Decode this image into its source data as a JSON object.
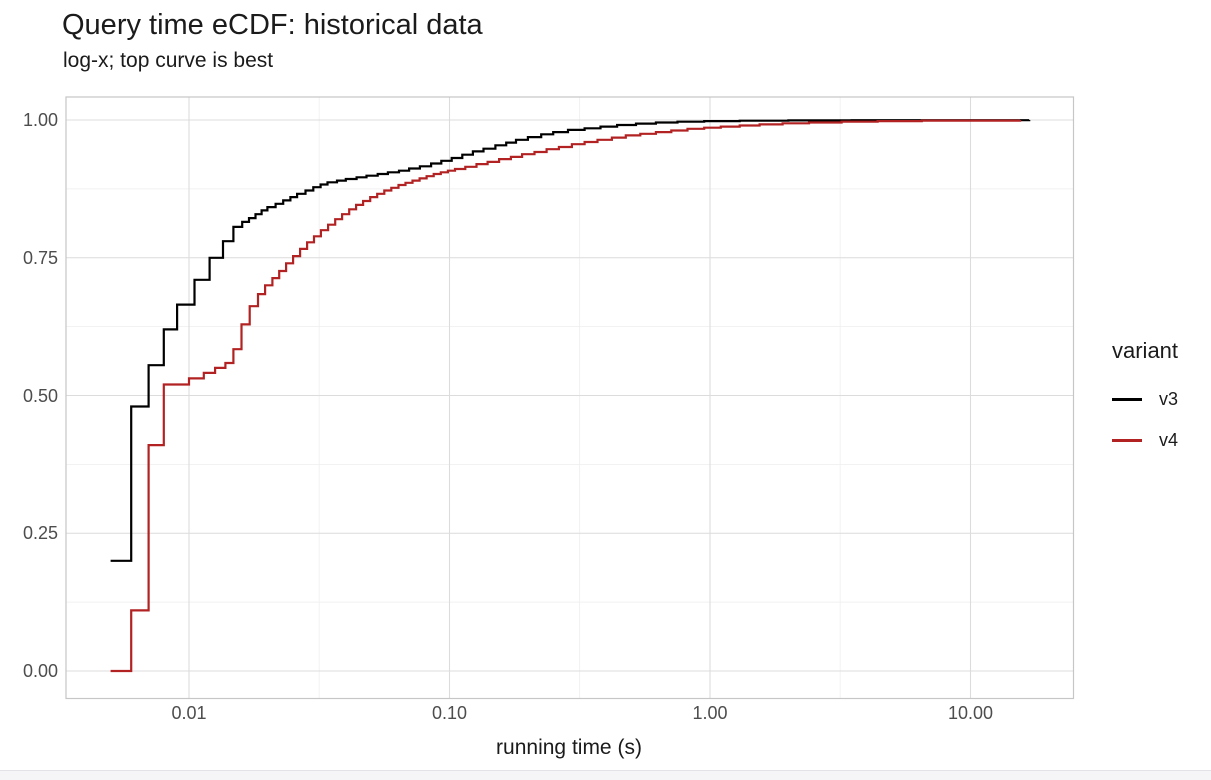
{
  "chart_data": {
    "type": "line",
    "line_style": "step-ecdf",
    "title": "Query time eCDF: historical data",
    "subtitle": "log-x; top curve is best",
    "xlabel": "running time (s)",
    "ylabel": "",
    "x_scale": "log10",
    "xlim": [
      0.0034,
      24.9
    ],
    "ylim": [
      0.0,
      1.0
    ],
    "grid": "major+minor",
    "x_ticks": [
      {
        "value": 0.01,
        "label": "0.01"
      },
      {
        "value": 0.1,
        "label": "0.10"
      },
      {
        "value": 1.0,
        "label": "1.00"
      },
      {
        "value": 10.0,
        "label": "10.00"
      }
    ],
    "y_ticks": [
      {
        "value": 0.0,
        "label": "0.00"
      },
      {
        "value": 0.25,
        "label": "0.25"
      },
      {
        "value": 0.5,
        "label": "0.50"
      },
      {
        "value": 0.75,
        "label": "0.75"
      },
      {
        "value": 1.0,
        "label": "1.00"
      }
    ],
    "x_minor": [
      0.0316,
      0.316,
      3.16
    ],
    "y_minor": [
      0.125,
      0.375,
      0.625,
      0.875
    ],
    "legend": {
      "title": "variant",
      "position": "right"
    },
    "panel": {
      "border_color": "#c6c6c6",
      "grid_major_color": "#dcdcdc",
      "grid_minor_color": "#eeeeee",
      "background": "#ffffff"
    },
    "series": [
      {
        "name": "v3",
        "color": "#000000",
        "points": [
          [
            0.005,
            0.2
          ],
          [
            0.006,
            0.48
          ],
          [
            0.007,
            0.555
          ],
          [
            0.008,
            0.62
          ],
          [
            0.009,
            0.665
          ],
          [
            0.0105,
            0.71
          ],
          [
            0.012,
            0.75
          ],
          [
            0.0135,
            0.78
          ],
          [
            0.0148,
            0.806
          ],
          [
            0.016,
            0.815
          ],
          [
            0.017,
            0.822
          ],
          [
            0.018,
            0.829
          ],
          [
            0.019,
            0.836
          ],
          [
            0.02,
            0.842
          ],
          [
            0.0215,
            0.848
          ],
          [
            0.023,
            0.854
          ],
          [
            0.0245,
            0.86
          ],
          [
            0.026,
            0.866
          ],
          [
            0.028,
            0.872
          ],
          [
            0.03,
            0.878
          ],
          [
            0.032,
            0.883
          ],
          [
            0.034,
            0.887
          ],
          [
            0.037,
            0.89
          ],
          [
            0.04,
            0.893
          ],
          [
            0.044,
            0.896
          ],
          [
            0.048,
            0.899
          ],
          [
            0.053,
            0.902
          ],
          [
            0.058,
            0.905
          ],
          [
            0.064,
            0.908
          ],
          [
            0.07,
            0.912
          ],
          [
            0.077,
            0.916
          ],
          [
            0.085,
            0.921
          ],
          [
            0.093,
            0.926
          ],
          [
            0.102,
            0.931
          ],
          [
            0.112,
            0.937
          ],
          [
            0.123,
            0.943
          ],
          [
            0.135,
            0.948
          ],
          [
            0.15,
            0.954
          ],
          [
            0.165,
            0.959
          ],
          [
            0.18,
            0.964
          ],
          [
            0.2,
            0.969
          ],
          [
            0.225,
            0.974
          ],
          [
            0.25,
            0.978
          ],
          [
            0.285,
            0.982
          ],
          [
            0.33,
            0.985
          ],
          [
            0.38,
            0.988
          ],
          [
            0.44,
            0.991
          ],
          [
            0.52,
            0.9935
          ],
          [
            0.62,
            0.9955
          ],
          [
            0.75,
            0.997
          ],
          [
            0.95,
            0.998
          ],
          [
            1.3,
            0.9987
          ],
          [
            2.0,
            0.9993
          ],
          [
            3.5,
            0.9997
          ],
          [
            16.8,
            1.0
          ]
        ]
      },
      {
        "name": "v4",
        "color": "#B22222",
        "points": [
          [
            0.005,
            0.0
          ],
          [
            0.006,
            0.11
          ],
          [
            0.007,
            0.41
          ],
          [
            0.008,
            0.52
          ],
          [
            0.01,
            0.531
          ],
          [
            0.0114,
            0.541
          ],
          [
            0.0126,
            0.55
          ],
          [
            0.0138,
            0.559
          ],
          [
            0.0148,
            0.584
          ],
          [
            0.0159,
            0.629
          ],
          [
            0.0171,
            0.662
          ],
          [
            0.0184,
            0.684
          ],
          [
            0.0196,
            0.7
          ],
          [
            0.0209,
            0.713
          ],
          [
            0.0222,
            0.726
          ],
          [
            0.0236,
            0.74
          ],
          [
            0.0251,
            0.753
          ],
          [
            0.0267,
            0.766
          ],
          [
            0.0284,
            0.778
          ],
          [
            0.0302,
            0.789
          ],
          [
            0.0321,
            0.8
          ],
          [
            0.0342,
            0.81
          ],
          [
            0.0364,
            0.82
          ],
          [
            0.0387,
            0.829
          ],
          [
            0.0412,
            0.838
          ],
          [
            0.0438,
            0.846
          ],
          [
            0.0466,
            0.853
          ],
          [
            0.0496,
            0.86
          ],
          [
            0.0528,
            0.866
          ],
          [
            0.0562,
            0.872
          ],
          [
            0.0598,
            0.877
          ],
          [
            0.0637,
            0.882
          ],
          [
            0.0678,
            0.886
          ],
          [
            0.0721,
            0.89
          ],
          [
            0.0768,
            0.894
          ],
          [
            0.0817,
            0.898
          ],
          [
            0.087,
            0.902
          ],
          [
            0.0926,
            0.905
          ],
          [
            0.0986,
            0.908
          ],
          [
            0.105,
            0.911
          ],
          [
            0.115,
            0.915
          ],
          [
            0.127,
            0.92
          ],
          [
            0.14,
            0.924
          ],
          [
            0.155,
            0.929
          ],
          [
            0.172,
            0.933
          ],
          [
            0.19,
            0.938
          ],
          [
            0.212,
            0.942
          ],
          [
            0.236,
            0.947
          ],
          [
            0.263,
            0.951
          ],
          [
            0.295,
            0.956
          ],
          [
            0.33,
            0.96
          ],
          [
            0.37,
            0.964
          ],
          [
            0.42,
            0.968
          ],
          [
            0.475,
            0.972
          ],
          [
            0.54,
            0.975
          ],
          [
            0.62,
            0.978
          ],
          [
            0.71,
            0.981
          ],
          [
            0.82,
            0.984
          ],
          [
            0.95,
            0.986
          ],
          [
            1.1,
            0.988
          ],
          [
            1.3,
            0.99
          ],
          [
            1.55,
            0.992
          ],
          [
            1.9,
            0.994
          ],
          [
            2.4,
            0.9955
          ],
          [
            3.2,
            0.997
          ],
          [
            4.4,
            0.998
          ],
          [
            6.5,
            0.999
          ],
          [
            15.5,
            1.0
          ]
        ]
      }
    ]
  }
}
